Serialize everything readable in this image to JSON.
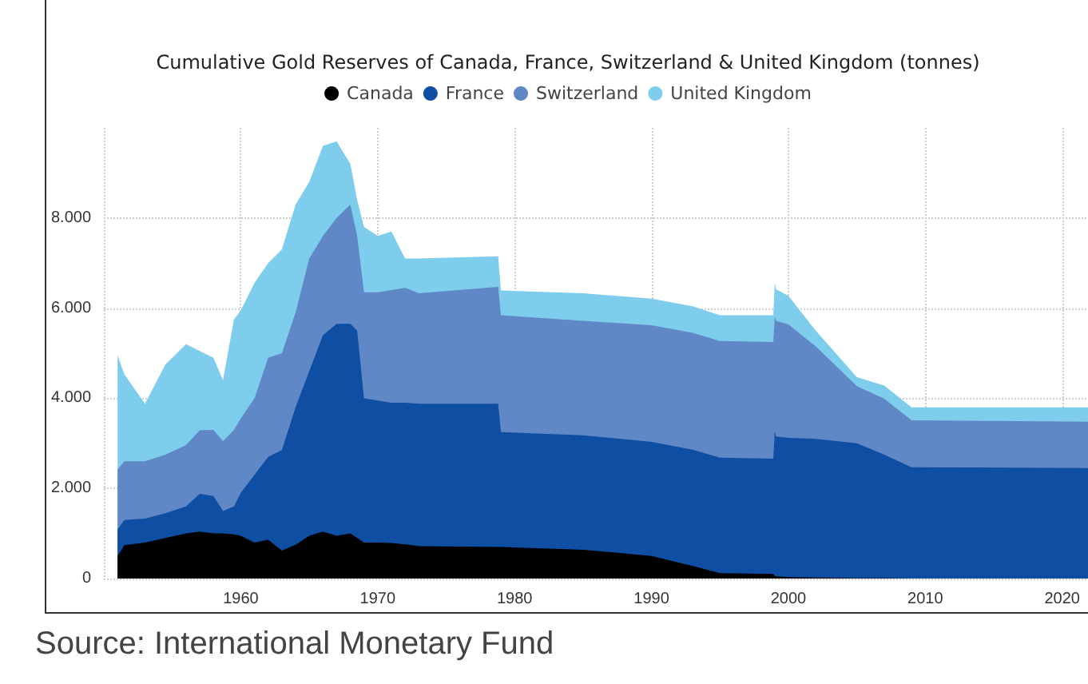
{
  "chart_data": {
    "type": "area",
    "title": "Cumulative Gold Reserves of Canada, France, Switzerland & United Kingdom (tonnes)",
    "x": [
      1951,
      1951.5,
      1953,
      1954.5,
      1956,
      1957,
      1958,
      1958.7,
      1959.5,
      1960,
      1961,
      1962,
      1963,
      1964,
      1965,
      1966,
      1967,
      1968,
      1968.5,
      1969,
      1970,
      1971,
      1972,
      1973,
      1978.8,
      1979,
      1985,
      1990,
      1993,
      1995,
      1998.9,
      1999,
      1999.1,
      2000,
      2002,
      2005,
      2007,
      2009,
      2022
    ],
    "series": [
      {
        "name": "Canada",
        "color": "#000000",
        "values": [
          500,
          740,
          800,
          900,
          1000,
          1040,
          1000,
          1000,
          980,
          950,
          800,
          860,
          620,
          750,
          950,
          1040,
          950,
          1000,
          900,
          800,
          800,
          790,
          760,
          720,
          700,
          700,
          640,
          500,
          280,
          120,
          100,
          60,
          50,
          30,
          20,
          10,
          10,
          0,
          0
        ]
      },
      {
        "name": "France",
        "color": "#0e4ea3",
        "values": [
          590,
          560,
          530,
          550,
          600,
          840,
          830,
          500,
          620,
          950,
          1500,
          1840,
          2230,
          3050,
          3650,
          4360,
          4700,
          4650,
          4600,
          3200,
          3150,
          3110,
          3140,
          3160,
          3180,
          2550,
          2540,
          2530,
          2580,
          2560,
          2560,
          3210,
          3100,
          3090,
          3080,
          2990,
          2740,
          2470,
          2450
        ]
      },
      {
        "name": "Switzerland",
        "color": "#6088c6",
        "values": [
          1330,
          1300,
          1270,
          1300,
          1360,
          1410,
          1470,
          1550,
          1700,
          1650,
          1700,
          2200,
          2150,
          2100,
          2500,
          2200,
          2350,
          2650,
          2100,
          2350,
          2400,
          2500,
          2550,
          2450,
          2590,
          2590,
          2540,
          2590,
          2590,
          2590,
          2590,
          2530,
          2570,
          2520,
          2050,
          1270,
          1240,
          1040,
          1030
        ]
      },
      {
        "name": "United Kingdom",
        "color": "#7fcdec",
        "values": [
          2530,
          1930,
          1280,
          2000,
          2240,
          1760,
          1600,
          1350,
          2450,
          2400,
          2560,
          2100,
          2300,
          2400,
          1700,
          2000,
          1700,
          900,
          800,
          1450,
          1250,
          1300,
          650,
          770,
          680,
          550,
          610,
          590,
          590,
          570,
          590,
          760,
          700,
          630,
          350,
          200,
          290,
          290,
          320
        ]
      }
    ],
    "stacked": true,
    "xlim": [
      1950,
      2022
    ],
    "xticks": [
      1960,
      1970,
      1980,
      1990,
      2000,
      2010,
      2020
    ],
    "ylim": [
      0,
      10000
    ],
    "yticks": [
      0,
      {
        "value": 2000,
        "label": "2.000"
      },
      {
        "value": 4000,
        "label": "4.000"
      },
      {
        "value": 6000,
        "label": "6.000"
      },
      {
        "value": 8000,
        "label": "8.000"
      }
    ],
    "grid": true,
    "legend": "top",
    "annotations": [
      "Source: International Monetary Fund"
    ]
  }
}
